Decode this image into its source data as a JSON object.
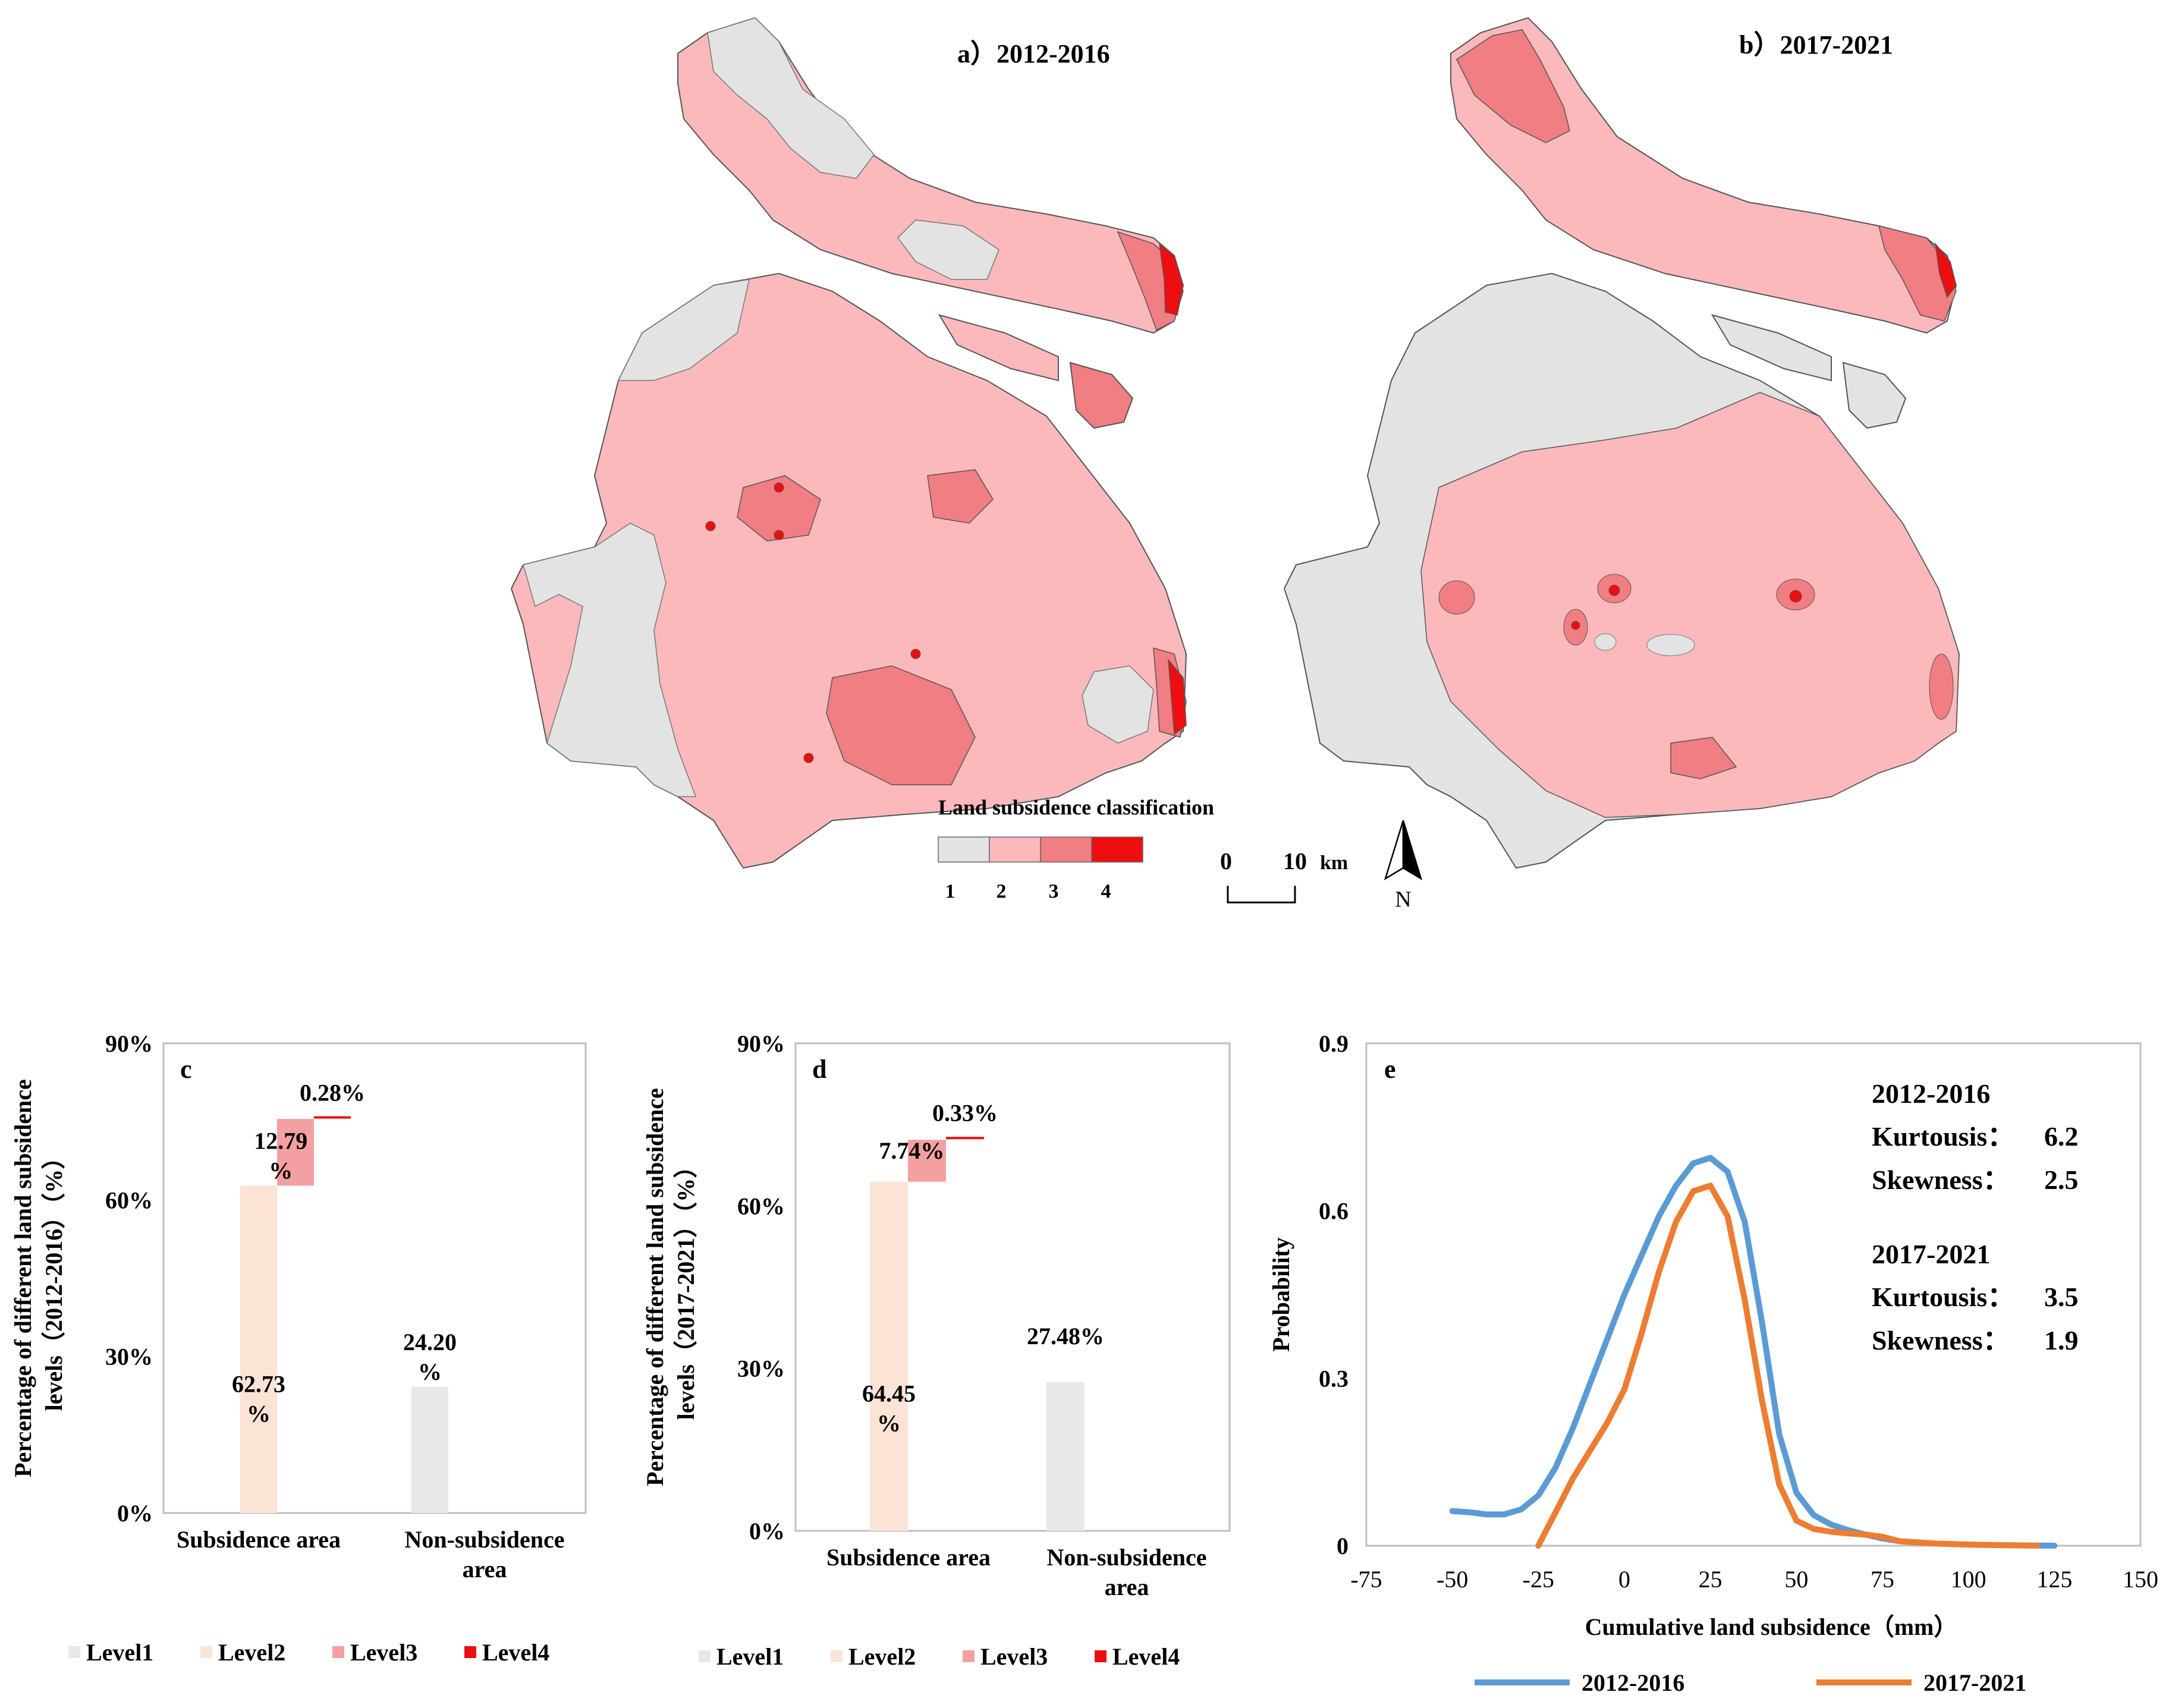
{
  "maps": {
    "a_title": "a）2012-2016",
    "b_title": "b）2017-2021",
    "legend": {
      "title": "Land subsidence classification",
      "classes": [
        {
          "label": "1",
          "color": "#e3e3e3"
        },
        {
          "label": "2",
          "color": "#fbb9bb"
        },
        {
          "label": "3",
          "color": "#f17e82"
        },
        {
          "label": "4",
          "color": "#ee0e10"
        }
      ]
    },
    "scale": {
      "start": "0",
      "end": "10",
      "unit": "km"
    },
    "north": "N"
  },
  "chart_data": [
    {
      "id": "c",
      "type": "bar",
      "panel_label": "c",
      "ylabel": "Percentage of different land subsidence levels（2012-2016）（%）",
      "ylim": [
        0,
        90
      ],
      "yticks": [
        "0%",
        "30%",
        "60%",
        "90%"
      ],
      "categories": [
        "Subsidence area",
        "Non-subsidence area"
      ],
      "category_lines": [
        [
          "Subsidence area"
        ],
        [
          "Non-subsidence",
          "area"
        ]
      ],
      "series": [
        {
          "name": "Level1",
          "color": "#e8e8e8",
          "values": [
            0,
            24.2
          ]
        },
        {
          "name": "Level2",
          "color": "#fbe4d6",
          "values": [
            62.73,
            0
          ]
        },
        {
          "name": "Level3",
          "color": "#f4a0a2",
          "values": [
            12.79,
            0
          ]
        },
        {
          "name": "Level4",
          "color": "#ee0e10",
          "values": [
            0.28,
            0
          ]
        }
      ],
      "data_labels": [
        {
          "series": "Level2",
          "lines": [
            "62.73",
            "%"
          ]
        },
        {
          "series": "Level3",
          "lines": [
            "12.79",
            "%"
          ]
        },
        {
          "series": "Level4",
          "lines": [
            "0.28%"
          ]
        },
        {
          "series": "Level1",
          "lines": [
            "24.20",
            "%"
          ]
        }
      ],
      "legend": [
        "Level1",
        "Level2",
        "Level3",
        "Level4"
      ]
    },
    {
      "id": "d",
      "type": "bar",
      "panel_label": "d",
      "ylabel": "Percentage of different land subsidence levels（2017-2021）（%）",
      "ylim": [
        0,
        90
      ],
      "yticks": [
        "0%",
        "30%",
        "60%",
        "90%"
      ],
      "categories": [
        "Subsidence area",
        "Non-subsidence area"
      ],
      "category_lines": [
        [
          "Subsidence area"
        ],
        [
          "Non-subsidence",
          "area"
        ]
      ],
      "series": [
        {
          "name": "Level1",
          "color": "#e8e8e8",
          "values": [
            0,
            27.48
          ]
        },
        {
          "name": "Level2",
          "color": "#fbe4d6",
          "values": [
            64.45,
            0
          ]
        },
        {
          "name": "Level3",
          "color": "#f4a0a2",
          "values": [
            7.74,
            0
          ]
        },
        {
          "name": "Level4",
          "color": "#ee0e10",
          "values": [
            0.33,
            0
          ]
        }
      ],
      "data_labels": [
        {
          "series": "Level2",
          "lines": [
            "64.45",
            "%"
          ]
        },
        {
          "series": "Level3",
          "lines": [
            "7.74%"
          ]
        },
        {
          "series": "Level4",
          "lines": [
            "0.33%"
          ]
        },
        {
          "series": "Level1",
          "lines": [
            "27.48%"
          ]
        }
      ],
      "legend": [
        "Level1",
        "Level2",
        "Level3",
        "Level4"
      ]
    },
    {
      "id": "e",
      "type": "line",
      "panel_label": "e",
      "xlabel": "Cumulative land subsidence（mm）",
      "ylabel": "Probability",
      "xlim": [
        -75,
        150
      ],
      "ylim": [
        0,
        0.9
      ],
      "xticks": [
        "-75",
        "-50",
        "-25",
        "0",
        "25",
        "50",
        "75",
        "100",
        "125",
        "150"
      ],
      "yticks": [
        "0",
        "0.3",
        "0.6",
        "0.9"
      ],
      "series": [
        {
          "name": "2012-2016",
          "color": "#5b9bd5",
          "x": [
            -50,
            -45,
            -40,
            -35,
            -30,
            -25,
            -20,
            -15,
            -10,
            -5,
            0,
            5,
            10,
            15,
            20,
            25,
            30,
            35,
            40,
            45,
            50,
            55,
            60,
            65,
            70,
            75,
            80,
            90,
            100,
            110,
            125
          ],
          "y": [
            0.062,
            0.06,
            0.056,
            0.056,
            0.065,
            0.09,
            0.14,
            0.21,
            0.29,
            0.37,
            0.45,
            0.52,
            0.59,
            0.645,
            0.685,
            0.695,
            0.67,
            0.58,
            0.4,
            0.2,
            0.095,
            0.055,
            0.038,
            0.028,
            0.02,
            0.013,
            0.008,
            0.004,
            0.002,
            0.001,
            0.0
          ]
        },
        {
          "name": "2017-2021",
          "color": "#ed7d31",
          "x": [
            -25,
            -20,
            -15,
            -10,
            -5,
            0,
            5,
            10,
            15,
            20,
            25,
            30,
            35,
            40,
            45,
            50,
            55,
            60,
            65,
            70,
            75,
            80,
            90,
            100,
            110,
            120
          ],
          "y": [
            0.0,
            0.06,
            0.12,
            0.17,
            0.22,
            0.28,
            0.38,
            0.49,
            0.58,
            0.635,
            0.645,
            0.59,
            0.44,
            0.26,
            0.11,
            0.045,
            0.03,
            0.025,
            0.022,
            0.02,
            0.016,
            0.008,
            0.004,
            0.002,
            0.001,
            0.0
          ]
        }
      ],
      "annotations": [
        {
          "period": "2012-2016",
          "kurtosis_label": "Kurtousis：",
          "kurtosis": "6.2",
          "skewness_label": "Skewness：",
          "skewness": "2.5"
        },
        {
          "period": "2017-2021",
          "kurtosis_label": "Kurtousis：",
          "kurtosis": "3.5",
          "skewness_label": "Skewness：",
          "skewness": "1.9"
        }
      ],
      "legend": [
        "2012-2016",
        "2017-2021"
      ]
    }
  ]
}
